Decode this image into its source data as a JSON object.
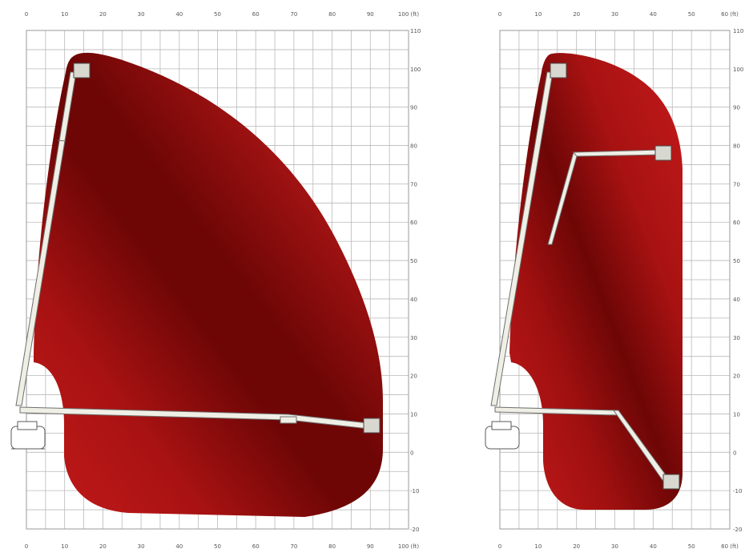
{
  "colors": {
    "envelope_light": "#c41a1a",
    "envelope_mid": "#9a0d0d",
    "envelope_dark": "#6e0606",
    "grid": "#b9b9b9",
    "boom": "#efefe6"
  },
  "diagrams": [
    {
      "id": "left",
      "x_ticks": [
        "0",
        "10",
        "20",
        "30",
        "40",
        "50",
        "60",
        "70",
        "80",
        "90",
        "100 (ft)"
      ],
      "y_ticks": [
        "110",
        "100",
        "90",
        "80",
        "70",
        "60",
        "50",
        "40",
        "30",
        "20",
        "10",
        "0",
        "-10",
        "-20"
      ],
      "x_range": [
        0,
        100
      ],
      "y_range": [
        -20,
        110
      ]
    },
    {
      "id": "right",
      "x_ticks": [
        "0",
        "10",
        "20",
        "30",
        "40",
        "50",
        "60 (ft)"
      ],
      "y_ticks": [
        "110",
        "100",
        "90",
        "80",
        "70",
        "60",
        "50",
        "40",
        "30",
        "20",
        "10",
        "0",
        "-10",
        "-20"
      ],
      "x_range": [
        0,
        60
      ],
      "y_range": [
        -20,
        110
      ]
    }
  ]
}
